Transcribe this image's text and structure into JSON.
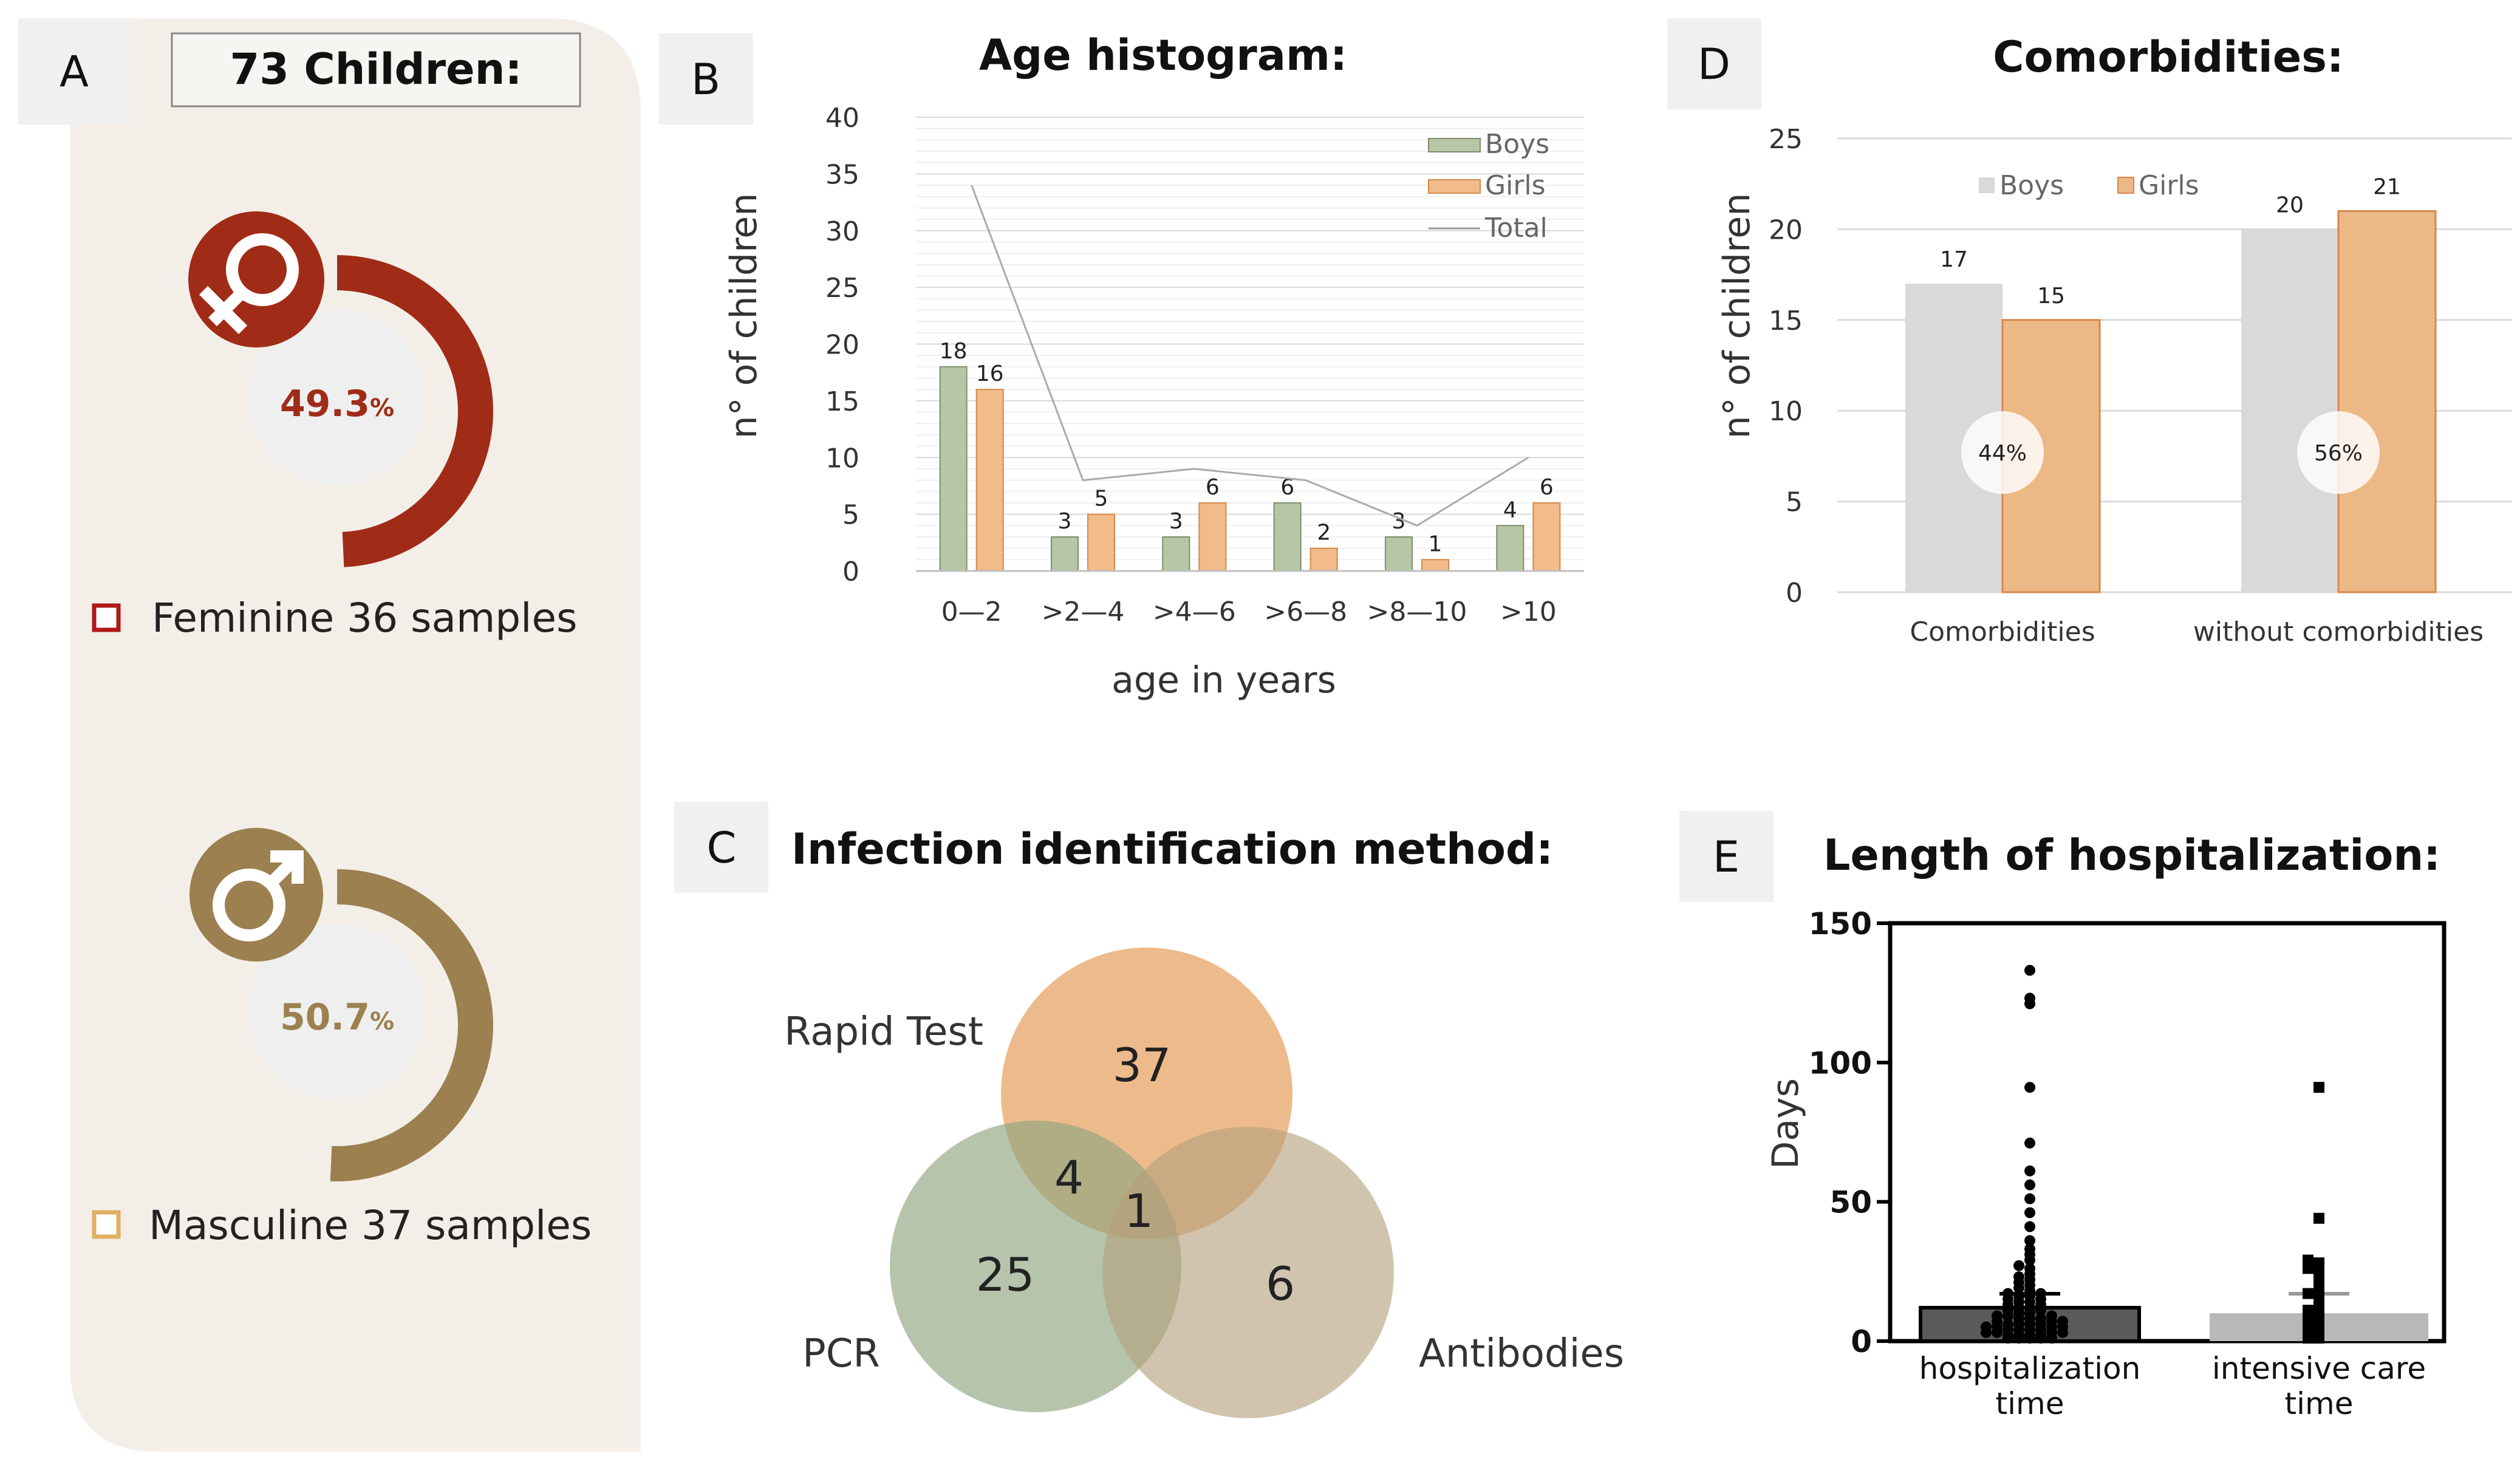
{
  "panel_a": {
    "letter": "A",
    "header": "73 Children:",
    "female": {
      "percent_value": "49.3",
      "percent_sign": "%",
      "label": "Feminine 36 samples",
      "fraction": 0.493,
      "color": "#a02c17"
    },
    "male": {
      "percent_value": "50.7",
      "percent_sign": "%",
      "label": "Masculine 37 samples",
      "fraction": 0.507,
      "color": "#9c8050"
    }
  },
  "chart_data": [
    {
      "id": "age",
      "letter": "B",
      "type": "bar",
      "title": "Age histogram:",
      "xlabel": "age in years",
      "ylabel": "n° of children",
      "ylim": [
        0,
        40
      ],
      "yticks": [
        "0",
        "5",
        "10",
        "15",
        "20",
        "25",
        "30",
        "35",
        "40"
      ],
      "categories": [
        "0—2",
        ">2—4",
        ">4—6",
        ">6—8",
        ">8—10",
        ">10"
      ],
      "series": [
        {
          "name": "Boys",
          "values": [
            18,
            3,
            3,
            6,
            3,
            4
          ],
          "color": "#b6c6a6"
        },
        {
          "name": "Girls",
          "values": [
            16,
            5,
            6,
            2,
            1,
            6
          ],
          "color": "#f1bb8a"
        },
        {
          "name": "Total",
          "values": [
            34,
            8,
            9,
            8,
            4,
            10
          ],
          "color": "#aaaaaa"
        }
      ]
    },
    {
      "id": "comorb",
      "letter": "D",
      "type": "bar",
      "title": "Comorbidities:",
      "ylabel": "n° of children",
      "ylim": [
        0,
        25
      ],
      "yticks": [
        "0",
        "5",
        "10",
        "15",
        "20",
        "25"
      ],
      "categories": [
        "Comorbidities",
        "without comorbidities"
      ],
      "percent_labels": [
        "44%",
        "56%"
      ],
      "series": [
        {
          "name": "Boys",
          "values": [
            17,
            20
          ],
          "color": "#d9d9d9"
        },
        {
          "name": "Girls",
          "values": [
            15,
            21
          ],
          "color": "#ecb886"
        }
      ]
    },
    {
      "id": "venn",
      "letter": "C",
      "type": "venn",
      "title": "Infection identification method:",
      "sets": [
        "Rapid Test",
        "PCR",
        "Antibodies"
      ],
      "regions": {
        "rapid_only": 37,
        "pcr_only": 25,
        "antibodies_only": 6,
        "rapid_pcr": 4,
        "all_three": 1
      }
    },
    {
      "id": "hosp",
      "letter": "E",
      "type": "scatter",
      "title": "Length of hospitalization:",
      "ylabel": "Days",
      "ylim": [
        0,
        150
      ],
      "yticks": [
        "0",
        "50",
        "100",
        "150"
      ],
      "categories": [
        "hospitalization\ntime",
        "intensive care\ntime"
      ],
      "bar_means": [
        12,
        10
      ],
      "error_bars": [
        [
          12,
          17
        ],
        [
          10,
          17
        ]
      ],
      "points": [
        [
          0,
          0,
          0,
          0,
          0,
          1,
          1,
          1,
          1,
          2,
          2,
          2,
          2,
          3,
          3,
          3,
          3,
          4,
          4,
          4,
          4,
          5,
          5,
          5,
          5,
          6,
          6,
          6,
          7,
          7,
          7,
          8,
          8,
          8,
          9,
          9,
          10,
          10,
          11,
          11,
          12,
          12,
          13,
          13,
          14,
          14,
          15,
          15,
          16,
          16,
          17,
          18,
          19,
          20,
          21,
          22,
          23,
          25,
          26,
          28,
          30,
          32,
          35,
          40,
          45,
          50,
          55,
          60,
          70,
          90,
          120,
          122,
          132
        ],
        [
          0,
          0,
          1,
          2,
          3,
          4,
          5,
          6,
          7,
          8,
          9,
          10,
          12,
          14,
          15,
          16,
          18,
          20,
          22,
          25,
          25,
          27,
          28,
          43,
          90
        ]
      ]
    }
  ]
}
